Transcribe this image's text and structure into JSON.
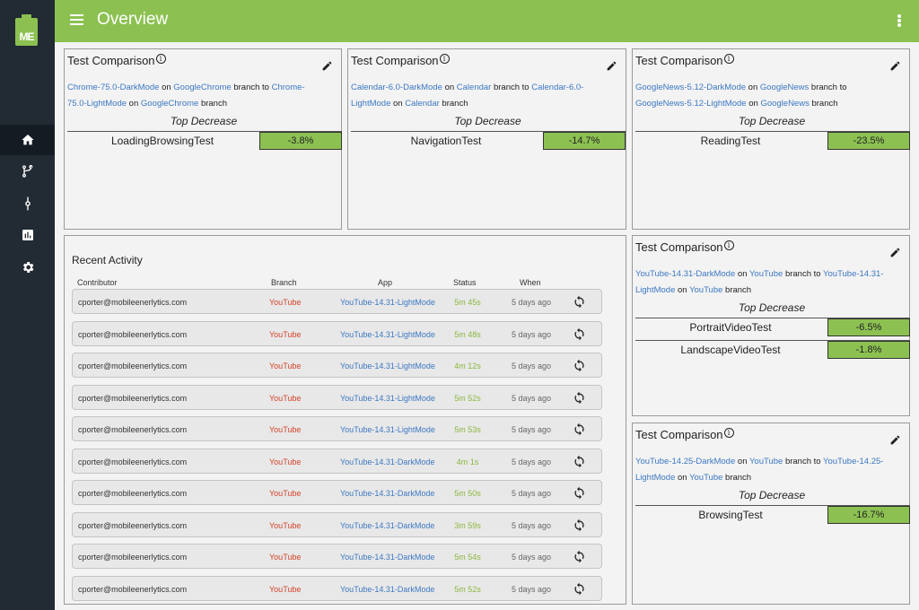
{
  "header": {
    "title": "Overview"
  },
  "sidebar": {
    "logo_text": "ME",
    "items": [
      {
        "icon": "home-icon",
        "active": true
      },
      {
        "icon": "branch-icon"
      },
      {
        "icon": "commit-icon"
      },
      {
        "icon": "chart-icon"
      },
      {
        "icon": "gear-icon"
      }
    ]
  },
  "colors": {
    "accent": "#8cc152",
    "sidebar": "#222a33",
    "link": "#3c78c3",
    "branch": "#d4432a",
    "status": "#8bb840"
  },
  "cards": [
    {
      "title": "Test Comparison",
      "from_app": "Chrome-75.0-DarkMode",
      "from_branch": "GoogleChrome",
      "to_app": "Chrome-75.0-LightMode",
      "to_branch": "GoogleChrome",
      "on": "on",
      "branch_to": "branch to",
      "branch": "branch",
      "heading": "Top Decrease",
      "metrics": [
        {
          "name": "LoadingBrowsingTest",
          "value": "-3.8%"
        }
      ]
    },
    {
      "title": "Test Comparison",
      "from_app": "Calendar-6.0-DarkMode",
      "from_branch": "Calendar",
      "to_app": "Calendar-6.0-LightMode",
      "to_branch": "Calendar",
      "on": "on",
      "branch_to": "branch to",
      "branch": "branch",
      "heading": "Top Decrease",
      "metrics": [
        {
          "name": "NavigationTest",
          "value": "-14.7%"
        }
      ]
    },
    {
      "title": "Test Comparison",
      "from_app": "GoogleNews-5.12-DarkMode",
      "from_branch": "GoogleNews",
      "to_app": "GoogleNews-5.12-LightMode",
      "to_branch": "GoogleNews",
      "on": "on",
      "branch_to": "branch to",
      "branch": "branch",
      "heading": "Top Decrease",
      "metrics": [
        {
          "name": "ReadingTest",
          "value": "-23.5%"
        }
      ]
    },
    {
      "title": "Test Comparison",
      "from_app": "YouTube-14.31-DarkMode",
      "from_branch": "YouTube",
      "to_app": "YouTube-14.31-LightMode",
      "to_branch": "YouTube",
      "on": "on",
      "branch_to": "branch to",
      "branch": "branch",
      "heading": "Top Decrease",
      "metrics": [
        {
          "name": "PortraitVideoTest",
          "value": "-6.5%"
        },
        {
          "name": "LandscapeVideoTest",
          "value": "-1.8%"
        }
      ]
    },
    {
      "title": "Test Comparison",
      "from_app": "YouTube-14.25-DarkMode",
      "from_branch": "YouTube",
      "to_app": "YouTube-14.25-LightMode",
      "to_branch": "YouTube",
      "on": "on",
      "branch_to": "branch to",
      "branch": "branch",
      "heading": "Top Decrease",
      "metrics": [
        {
          "name": "BrowsingTest",
          "value": "-16.7%"
        }
      ]
    }
  ],
  "activity": {
    "title": "Recent Activity",
    "columns": {
      "contributor": "Contributor",
      "branch": "Branch",
      "app": "App",
      "status": "Status",
      "when": "When"
    },
    "rows": [
      {
        "contributor": "cporter@mobileenerlytics.com",
        "branch": "YouTube",
        "app": "YouTube-14.31-LightMode",
        "status": "5m 45s",
        "when": "5 days ago"
      },
      {
        "contributor": "cporter@mobileenerlytics.com",
        "branch": "YouTube",
        "app": "YouTube-14.31-LightMode",
        "status": "5m 48s",
        "when": "5 days ago"
      },
      {
        "contributor": "cporter@mobileenerlytics.com",
        "branch": "YouTube",
        "app": "YouTube-14.31-LightMode",
        "status": "4m 12s",
        "when": "5 days ago"
      },
      {
        "contributor": "cporter@mobileenerlytics.com",
        "branch": "YouTube",
        "app": "YouTube-14.31-LightMode",
        "status": "5m 52s",
        "when": "5 days ago"
      },
      {
        "contributor": "cporter@mobileenerlytics.com",
        "branch": "YouTube",
        "app": "YouTube-14.31-LightMode",
        "status": "5m 53s",
        "when": "5 days ago"
      },
      {
        "contributor": "cporter@mobileenerlytics.com",
        "branch": "YouTube",
        "app": "YouTube-14.31-DarkMode",
        "status": "4m 1s",
        "when": "5 days ago"
      },
      {
        "contributor": "cporter@mobileenerlytics.com",
        "branch": "YouTube",
        "app": "YouTube-14.31-DarkMode",
        "status": "5m 50s",
        "when": "5 days ago"
      },
      {
        "contributor": "cporter@mobileenerlytics.com",
        "branch": "YouTube",
        "app": "YouTube-14.31-DarkMode",
        "status": "3m 59s",
        "when": "5 days ago"
      },
      {
        "contributor": "cporter@mobileenerlytics.com",
        "branch": "YouTube",
        "app": "YouTube-14.31-DarkMode",
        "status": "5m 54s",
        "when": "5 days ago"
      },
      {
        "contributor": "cporter@mobileenerlytics.com",
        "branch": "YouTube",
        "app": "YouTube-14.31-DarkMode",
        "status": "5m 52s",
        "when": "5 days ago"
      }
    ]
  }
}
